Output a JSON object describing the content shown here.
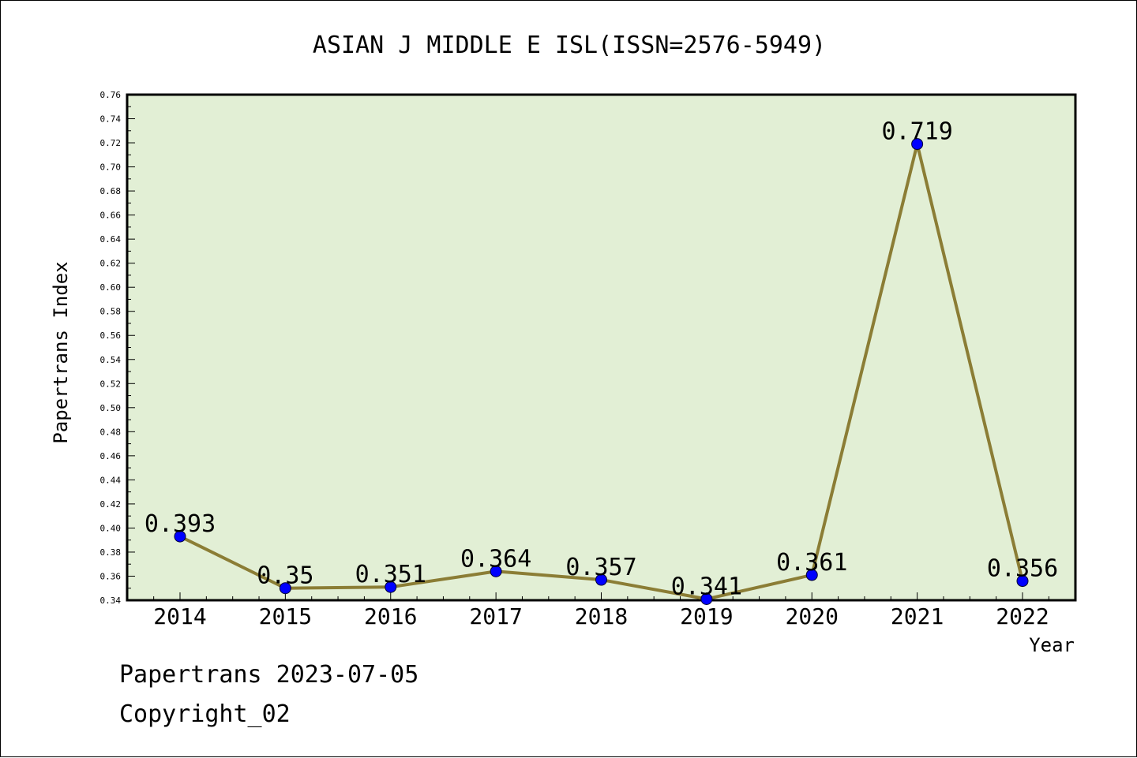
{
  "chart_data": {
    "type": "line",
    "title": "ASIAN J MIDDLE E ISL(ISSN=2576-5949)",
    "xlabel": "Year",
    "ylabel": "Papertrans Index",
    "categories": [
      "2014",
      "2015",
      "2016",
      "2017",
      "2018",
      "2019",
      "2020",
      "2021",
      "2022"
    ],
    "series": [
      {
        "values": [
          0.393,
          0.35,
          0.351,
          0.364,
          0.357,
          0.341,
          0.361,
          0.719,
          0.356
        ],
        "labels": [
          "0.393",
          "0.35",
          "0.351",
          "0.364",
          "0.357",
          "0.341",
          "0.361",
          "0.719",
          "0.356"
        ]
      }
    ],
    "ylim": [
      0.34,
      0.76
    ],
    "yticks": [
      "0.34",
      "0.36",
      "0.38",
      "0.40",
      "0.42",
      "0.44",
      "0.46",
      "0.48",
      "0.50",
      "0.52",
      "0.54",
      "0.56",
      "0.58",
      "0.60",
      "0.62",
      "0.64",
      "0.66",
      "0.68",
      "0.70",
      "0.72",
      "0.74",
      "0.76"
    ],
    "grid": false,
    "colors": {
      "plot_background": "#e2efd5",
      "line": "#8b7d35",
      "marker": "#0000ff",
      "axis": "#000000"
    }
  },
  "footer": {
    "date_line": "Papertrans 2023-07-05",
    "copyright": "Copyright_02"
  }
}
